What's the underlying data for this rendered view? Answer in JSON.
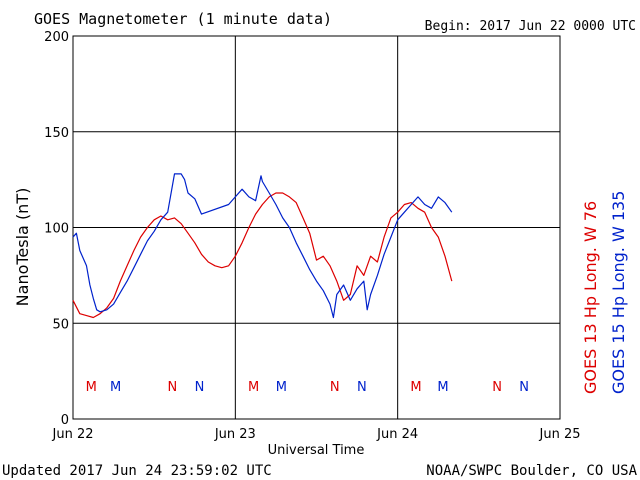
{
  "header": {
    "title": "GOES Magnetometer (1 minute data)",
    "begin": "Begin:  2017 Jun 22 0000 UTC"
  },
  "footer": {
    "updated": "Updated 2017 Jun 24 23:59:02 UTC",
    "source": "NOAA/SWPC Boulder, CO USA"
  },
  "colors": {
    "red": "#dd0000",
    "blue": "#0022cc",
    "grid": "#000000"
  },
  "chart_data": {
    "type": "line",
    "xlabel": "Universal Time",
    "ylabel": "NanoTesla (nT)",
    "ylim": [
      0,
      200
    ],
    "yticks": [
      0,
      50,
      100,
      150,
      200
    ],
    "xlim_hours": [
      0,
      72
    ],
    "xticks": [
      {
        "hour": 0,
        "label": "Jun 22"
      },
      {
        "hour": 24,
        "label": "Jun 23"
      },
      {
        "hour": 48,
        "label": "Jun 24"
      },
      {
        "hour": 72,
        "label": "Jun 25"
      }
    ],
    "grid": true,
    "series": [
      {
        "name": "GOES 13 Hp  Long. W 76",
        "color": "#dd0000",
        "points": [
          [
            0,
            62
          ],
          [
            1,
            55
          ],
          [
            2,
            54
          ],
          [
            3,
            53
          ],
          [
            4,
            55
          ],
          [
            5,
            58
          ],
          [
            6,
            63
          ],
          [
            7,
            72
          ],
          [
            8,
            80
          ],
          [
            9,
            88
          ],
          [
            10,
            95
          ],
          [
            11,
            100
          ],
          [
            12,
            104
          ],
          [
            13,
            106
          ],
          [
            14,
            104
          ],
          [
            15,
            105
          ],
          [
            16,
            102
          ],
          [
            17,
            97
          ],
          [
            18,
            92
          ],
          [
            19,
            86
          ],
          [
            20,
            82
          ],
          [
            21,
            80
          ],
          [
            22,
            79
          ],
          [
            23,
            80
          ],
          [
            24,
            85
          ],
          [
            25,
            92
          ],
          [
            26,
            100
          ],
          [
            27,
            107
          ],
          [
            28,
            112
          ],
          [
            29,
            116
          ],
          [
            30,
            118
          ],
          [
            31,
            118
          ],
          [
            32,
            116
          ],
          [
            33,
            113
          ],
          [
            34,
            105
          ],
          [
            35,
            97
          ],
          [
            36,
            83
          ],
          [
            37,
            85
          ],
          [
            38,
            80
          ],
          [
            39,
            72
          ],
          [
            40,
            62
          ],
          [
            41,
            65
          ],
          [
            42,
            80
          ],
          [
            43,
            75
          ],
          [
            44,
            85
          ],
          [
            45,
            82
          ],
          [
            46,
            95
          ],
          [
            47,
            105
          ],
          [
            48,
            108
          ],
          [
            49,
            112
          ],
          [
            50,
            113
          ],
          [
            51,
            110
          ],
          [
            52,
            108
          ],
          [
            53,
            100
          ],
          [
            54,
            95
          ],
          [
            55,
            85
          ],
          [
            56,
            72
          ]
        ]
      },
      {
        "name": "GOES 15 Hp  Long. W 135",
        "color": "#0022cc",
        "points": [
          [
            0,
            95
          ],
          [
            0.5,
            97
          ],
          [
            1,
            88
          ],
          [
            2,
            80
          ],
          [
            2.5,
            70
          ],
          [
            3,
            63
          ],
          [
            3.5,
            57
          ],
          [
            4,
            56
          ],
          [
            5,
            57
          ],
          [
            6,
            60
          ],
          [
            7,
            66
          ],
          [
            8,
            72
          ],
          [
            9,
            79
          ],
          [
            10,
            86
          ],
          [
            11,
            93
          ],
          [
            12,
            98
          ],
          [
            13,
            104
          ],
          [
            14,
            108
          ],
          [
            15,
            128
          ],
          [
            16,
            128
          ],
          [
            16.5,
            125
          ],
          [
            17,
            118
          ],
          [
            18,
            115
          ],
          [
            19,
            107
          ],
          [
            23,
            112
          ],
          [
            24,
            116
          ],
          [
            25,
            120
          ],
          [
            26,
            116
          ],
          [
            27,
            114
          ],
          [
            27.8,
            127
          ],
          [
            28,
            124
          ],
          [
            29,
            118
          ],
          [
            30,
            112
          ],
          [
            31,
            105
          ],
          [
            32,
            100
          ],
          [
            33,
            92
          ],
          [
            34,
            85
          ],
          [
            35,
            78
          ],
          [
            36,
            72
          ],
          [
            37,
            67
          ],
          [
            38,
            60
          ],
          [
            38.5,
            53
          ],
          [
            39,
            65
          ],
          [
            40,
            70
          ],
          [
            41,
            62
          ],
          [
            42,
            68
          ],
          [
            43,
            72
          ],
          [
            43.5,
            57
          ],
          [
            44,
            65
          ],
          [
            45,
            75
          ],
          [
            46,
            86
          ],
          [
            47,
            95
          ],
          [
            48,
            104
          ],
          [
            49,
            108
          ],
          [
            50,
            112
          ],
          [
            51,
            116
          ],
          [
            52,
            112
          ],
          [
            53,
            110
          ],
          [
            54,
            116
          ],
          [
            55,
            113
          ],
          [
            56,
            108
          ]
        ]
      }
    ],
    "markers": [
      {
        "label": "M",
        "hour": 2.7,
        "color": "#dd0000"
      },
      {
        "label": "M",
        "hour": 6.3,
        "color": "#0022cc"
      },
      {
        "label": "N",
        "hour": 14.7,
        "color": "#dd0000"
      },
      {
        "label": "N",
        "hour": 18.7,
        "color": "#0022cc"
      },
      {
        "label": "M",
        "hour": 26.7,
        "color": "#dd0000"
      },
      {
        "label": "M",
        "hour": 30.8,
        "color": "#0022cc"
      },
      {
        "label": "N",
        "hour": 38.7,
        "color": "#dd0000"
      },
      {
        "label": "N",
        "hour": 42.7,
        "color": "#0022cc"
      },
      {
        "label": "M",
        "hour": 50.7,
        "color": "#dd0000"
      },
      {
        "label": "M",
        "hour": 54.7,
        "color": "#0022cc"
      },
      {
        "label": "N",
        "hour": 62.7,
        "color": "#dd0000"
      },
      {
        "label": "N",
        "hour": 66.7,
        "color": "#0022cc"
      }
    ]
  }
}
